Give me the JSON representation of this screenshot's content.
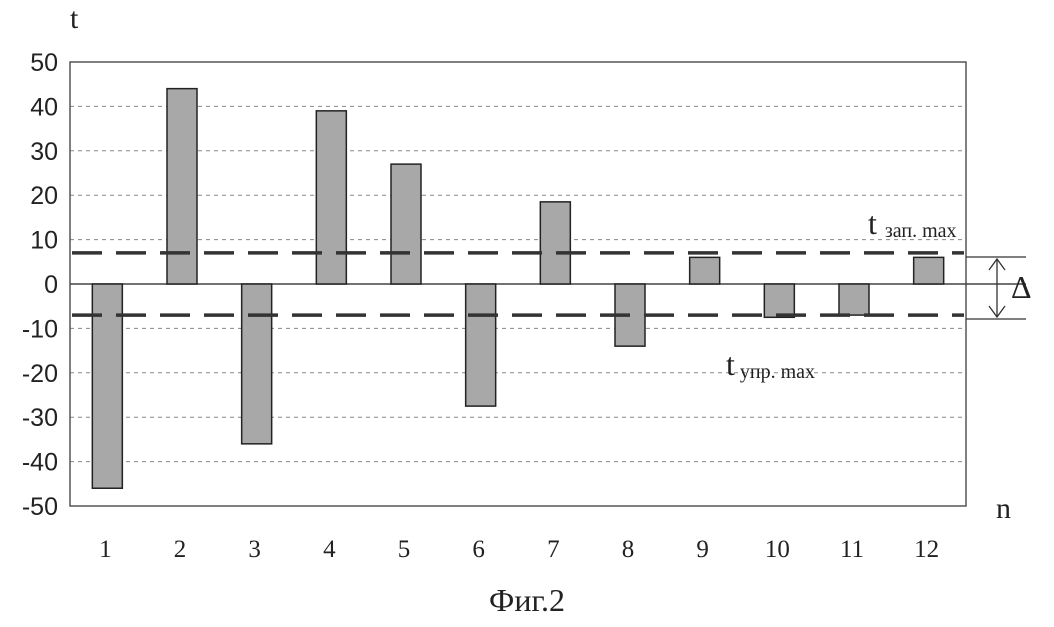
{
  "chart_data": {
    "type": "bar",
    "categories": [
      "1",
      "2",
      "3",
      "4",
      "5",
      "6",
      "7",
      "8",
      "9",
      "10",
      "11",
      "12"
    ],
    "values": [
      -46,
      44,
      -36,
      39,
      27,
      -27.5,
      18.5,
      -14,
      6,
      -7.5,
      -7,
      6
    ],
    "ylim": [
      -50,
      50
    ],
    "yticks": [
      "50",
      "40",
      "30",
      "20",
      "10",
      "0",
      "-10",
      "-20",
      "-30",
      "-40",
      "-50"
    ],
    "ylabel": "t",
    "xlabel": "n",
    "grid": true,
    "bar_color": "#a8a8a8",
    "thresholds": [
      {
        "label": "t",
        "subscript": "зап. max",
        "value": 7
      },
      {
        "label": "t",
        "subscript": "упр. max",
        "value": -7
      }
    ],
    "delta_label": "Δ"
  },
  "caption": "Фиг.2"
}
